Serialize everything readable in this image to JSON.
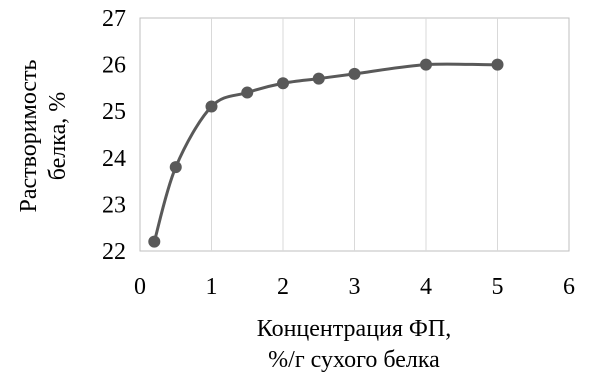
{
  "chart_data": {
    "type": "scatter",
    "x": [
      0.2,
      0.5,
      1.0,
      1.5,
      2.0,
      2.5,
      3.0,
      4.0,
      5.0
    ],
    "y": [
      22.2,
      23.8,
      25.1,
      25.4,
      25.6,
      25.7,
      25.8,
      26.0,
      26.0
    ],
    "trendline": "smooth",
    "xlim": [
      0,
      6
    ],
    "ylim": [
      22,
      27
    ],
    "xticks": [
      "0",
      "1",
      "2",
      "3",
      "4",
      "5",
      "6"
    ],
    "yticks": [
      "22",
      "23",
      "24",
      "25",
      "26",
      "27"
    ],
    "xlabel_lines": [
      "Концентрация ФП,",
      "%/г сухого белка"
    ],
    "ylabel_lines": [
      "Растворимость",
      "белка, %"
    ],
    "grid": {
      "vertical": true,
      "horizontal": false
    },
    "colors": {
      "marker": "#595959",
      "line": "#595959",
      "grid": "#d9d9d9",
      "axis": "#bfbfbf"
    }
  }
}
